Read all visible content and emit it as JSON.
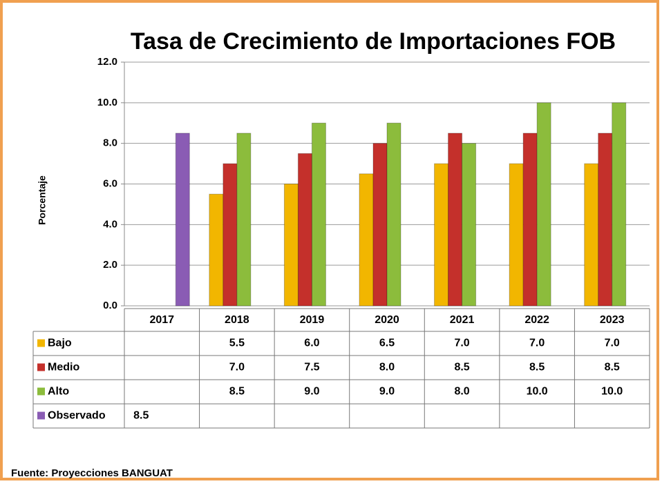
{
  "chart_data": {
    "type": "bar",
    "title": "Tasa de Crecimiento de Importaciones FOB",
    "y_label": "Porcentaje",
    "source": "Fuente: Proyecciones BANGUAT",
    "categories": [
      "2017",
      "2018",
      "2019",
      "2020",
      "2021",
      "2022",
      "2023"
    ],
    "series": [
      {
        "name": "Bajo",
        "color": "#f2b600",
        "values": [
          null,
          5.5,
          6.0,
          6.5,
          7.0,
          7.0,
          7.0
        ],
        "value_labels": [
          null,
          "5.5",
          "6.0",
          "6.5",
          "7.0",
          "7.0",
          "7.0"
        ]
      },
      {
        "name": "Medio",
        "color": "#c4302b",
        "values": [
          null,
          7.0,
          7.5,
          8.0,
          8.5,
          8.5,
          8.5
        ],
        "value_labels": [
          null,
          "7.0",
          "7.5",
          "8.0",
          "8.5",
          "8.5",
          "8.5"
        ]
      },
      {
        "name": "Alto",
        "color": "#8cbc3c",
        "values": [
          null,
          8.5,
          9.0,
          9.0,
          8.0,
          10.0,
          10.0
        ],
        "value_labels": [
          null,
          "8.5",
          "9.0",
          "9.0",
          "8.0",
          "10.0",
          "10.0"
        ]
      },
      {
        "name": "Observado",
        "color": "#8a5cb4",
        "values": [
          8.5,
          null,
          null,
          null,
          null,
          null,
          null
        ],
        "value_labels": [
          "8.5",
          null,
          null,
          null,
          null,
          null,
          null
        ]
      }
    ],
    "ylim": [
      0,
      12
    ],
    "yticks": [
      {
        "value": 0,
        "label": "0.0"
      },
      {
        "value": 2,
        "label": "2.0"
      },
      {
        "value": 4,
        "label": "4.0"
      },
      {
        "value": 6,
        "label": "6.0"
      },
      {
        "value": 8,
        "label": "8.0"
      },
      {
        "value": 10,
        "label": "10.0"
      },
      {
        "value": 12,
        "label": "12.0"
      }
    ],
    "grid": true
  }
}
